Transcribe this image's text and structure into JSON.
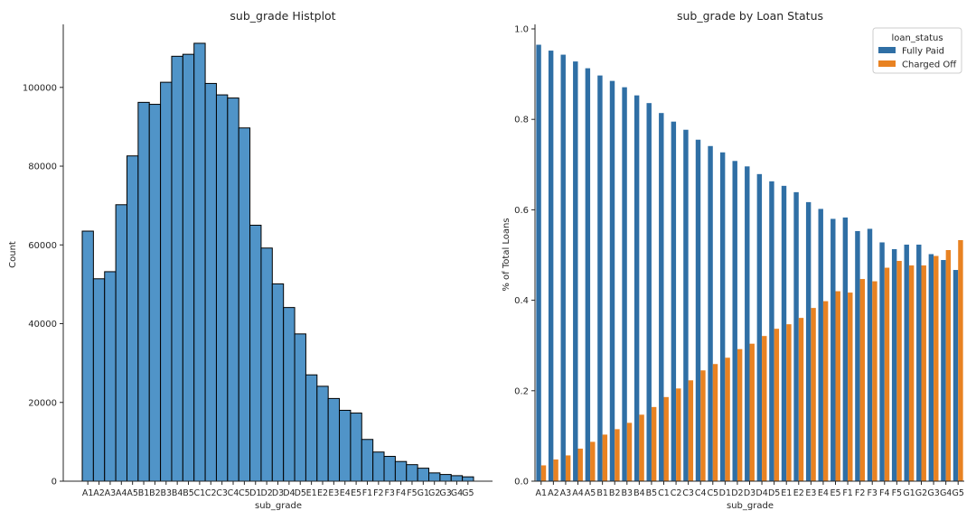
{
  "chart_data": [
    {
      "type": "bar",
      "title": "sub_grade Histplot",
      "xlabel": "sub_grade",
      "ylabel": "Count",
      "ylim": [
        0,
        116000
      ],
      "yticks": [
        0,
        20000,
        40000,
        60000,
        80000,
        100000
      ],
      "categories": [
        "A1",
        "A2",
        "A3",
        "A4",
        "A5",
        "B1",
        "B2",
        "B3",
        "B4",
        "B5",
        "C1",
        "C2",
        "C3",
        "C4",
        "C5",
        "D1",
        "D2",
        "D3",
        "D4",
        "D5",
        "E1",
        "E2",
        "E3",
        "E4",
        "E5",
        "F1",
        "F2",
        "F3",
        "F4",
        "F5",
        "G1",
        "G2",
        "G3",
        "G4",
        "G5"
      ],
      "values": [
        63500,
        51400,
        53200,
        70200,
        82600,
        96200,
        95700,
        101300,
        107900,
        108400,
        111200,
        101000,
        98100,
        97300,
        89700,
        65000,
        59200,
        50100,
        44100,
        37400,
        27000,
        24100,
        21000,
        18000,
        17300,
        10600,
        7400,
        6300,
        5000,
        4200,
        3300,
        2100,
        1700,
        1400,
        1100
      ],
      "colors": {
        "bar": "#5094c8",
        "edge": "#000000"
      },
      "grid": false
    },
    {
      "type": "bar",
      "title": "sub_grade by Loan Status",
      "xlabel": "sub_grade",
      "ylabel": "% of Total Loans",
      "ylim": [
        0,
        1.01
      ],
      "yticks": [
        0.0,
        0.2,
        0.4,
        0.6,
        0.8,
        1.0
      ],
      "categories": [
        "A1",
        "A2",
        "A3",
        "A4",
        "A5",
        "B1",
        "B2",
        "B3",
        "B4",
        "B5",
        "C1",
        "C2",
        "C3",
        "C4",
        "C5",
        "D1",
        "D2",
        "D3",
        "D4",
        "D5",
        "E1",
        "E2",
        "E3",
        "E4",
        "E5",
        "F1",
        "F2",
        "F3",
        "F4",
        "F5",
        "G1",
        "G2",
        "G3",
        "G4",
        "G5"
      ],
      "legend": {
        "title": "loan_status",
        "placement": "top-right"
      },
      "series": [
        {
          "name": "Fully Paid",
          "color": "#2f6fa5",
          "values": [
            0.965,
            0.952,
            0.943,
            0.928,
            0.913,
            0.897,
            0.885,
            0.871,
            0.853,
            0.836,
            0.814,
            0.795,
            0.777,
            0.755,
            0.741,
            0.727,
            0.708,
            0.696,
            0.679,
            0.663,
            0.653,
            0.639,
            0.617,
            0.602,
            0.58,
            0.583,
            0.553,
            0.558,
            0.528,
            0.513,
            0.523,
            0.523,
            0.502,
            0.489,
            0.467
          ]
        },
        {
          "name": "Charged Off",
          "color": "#e88222",
          "values": [
            0.035,
            0.048,
            0.057,
            0.072,
            0.087,
            0.103,
            0.115,
            0.129,
            0.147,
            0.164,
            0.186,
            0.205,
            0.223,
            0.245,
            0.259,
            0.273,
            0.292,
            0.304,
            0.321,
            0.337,
            0.347,
            0.361,
            0.383,
            0.398,
            0.42,
            0.417,
            0.447,
            0.442,
            0.472,
            0.487,
            0.477,
            0.477,
            0.498,
            0.511,
            0.533
          ]
        }
      ],
      "grid": false
    }
  ]
}
